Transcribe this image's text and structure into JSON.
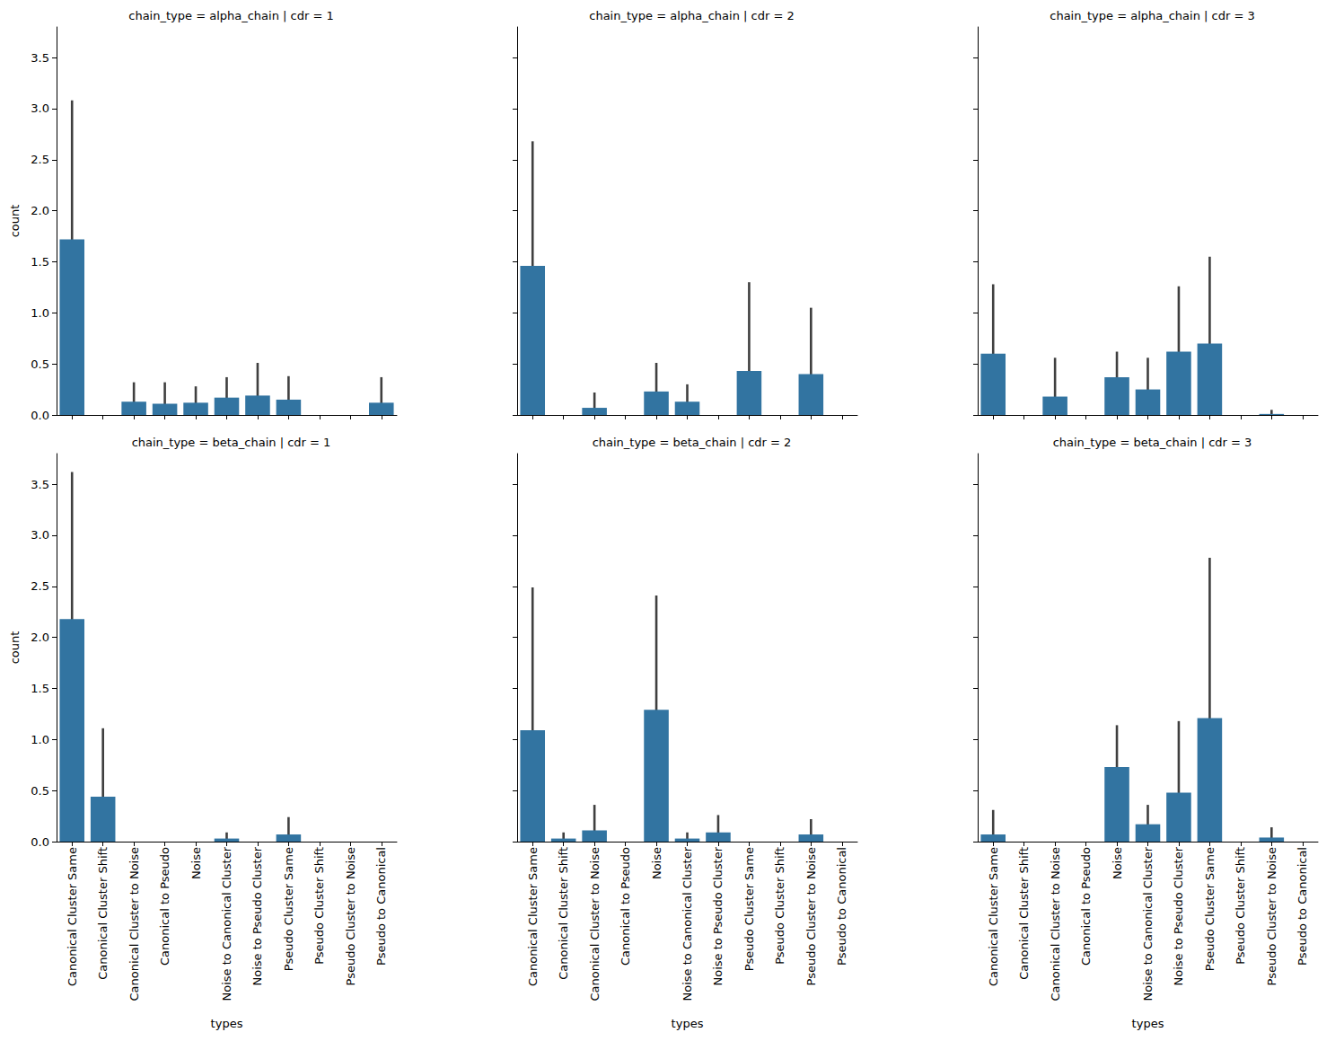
{
  "chart_data": [
    {
      "type": "bar",
      "title": "chain_type = alpha_chain | cdr = 1",
      "ylabel": "count",
      "tick_labels": "y",
      "categories": [
        "Canonical Cluster Same",
        "Canonical Cluster Shift",
        "Canonical Cluster to Noise",
        "Canonical to Pseudo",
        "Noise",
        "Noise to Canonical Cluster",
        "Noise to Pseudo Cluster",
        "Pseudo Cluster Same",
        "Pseudo Cluster Shift",
        "Pseudo Cluster to Noise",
        "Pseudo to Canonical"
      ],
      "values": [
        1.72,
        null,
        0.13,
        0.11,
        0.12,
        0.17,
        0.19,
        0.15,
        null,
        null,
        0.12
      ],
      "error_low": [
        0.62,
        null,
        0.0,
        0.0,
        0.0,
        0.0,
        0.0,
        0.0,
        null,
        null,
        0.0
      ],
      "error_high": [
        3.08,
        null,
        0.32,
        0.32,
        0.28,
        0.37,
        0.51,
        0.38,
        null,
        null,
        0.37
      ],
      "color": "#3274a1",
      "ylim": [
        0,
        3.8
      ],
      "yticks": [
        {
          "value": 0,
          "label": "0.0"
        },
        {
          "value": 0.5,
          "label": "0.5"
        },
        {
          "value": 1,
          "label": "1.0"
        },
        {
          "value": 1.5,
          "label": "1.5"
        },
        {
          "value": 2,
          "label": "2.0"
        },
        {
          "value": 2.5,
          "label": "2.5"
        },
        {
          "value": 3,
          "label": "3.0"
        },
        {
          "value": 3.5,
          "label": "3.5"
        }
      ]
    },
    {
      "type": "bar",
      "title": "chain_type = alpha_chain | cdr = 2",
      "tick_labels": false,
      "categories": [
        "Canonical Cluster Same",
        "Canonical Cluster Shift",
        "Canonical Cluster to Noise",
        "Canonical to Pseudo",
        "Noise",
        "Noise to Canonical Cluster",
        "Noise to Pseudo Cluster",
        "Pseudo Cluster Same",
        "Pseudo Cluster Shift",
        "Pseudo Cluster to Noise",
        "Pseudo to Canonical"
      ],
      "values": [
        1.46,
        null,
        0.07,
        null,
        0.23,
        0.13,
        null,
        0.43,
        null,
        0.4,
        null
      ],
      "error_low": [
        0.53,
        null,
        0.0,
        null,
        0.0,
        0.0,
        null,
        0.0,
        null,
        0.0,
        null
      ],
      "error_high": [
        2.68,
        null,
        0.22,
        null,
        0.51,
        0.3,
        null,
        1.3,
        null,
        1.05,
        null
      ],
      "color": "#3274a1",
      "ylim": [
        0,
        3.8
      ],
      "yticks": [
        {
          "value": 0,
          "label": "0.0"
        },
        {
          "value": 0.5,
          "label": "0.5"
        },
        {
          "value": 1,
          "label": "1.0"
        },
        {
          "value": 1.5,
          "label": "1.5"
        },
        {
          "value": 2,
          "label": "2.0"
        },
        {
          "value": 2.5,
          "label": "2.5"
        },
        {
          "value": 3,
          "label": "3.0"
        },
        {
          "value": 3.5,
          "label": "3.5"
        }
      ]
    },
    {
      "type": "bar",
      "title": "chain_type = alpha_chain | cdr = 3",
      "tick_labels": false,
      "categories": [
        "Canonical Cluster Same",
        "Canonical Cluster Shift",
        "Canonical Cluster to Noise",
        "Canonical to Pseudo",
        "Noise",
        "Noise to Canonical Cluster",
        "Noise to Pseudo Cluster",
        "Pseudo Cluster Same",
        "Pseudo Cluster Shift",
        "Pseudo Cluster to Noise",
        "Pseudo to Canonical"
      ],
      "values": [
        0.6,
        null,
        0.18,
        null,
        0.37,
        0.25,
        0.62,
        0.7,
        null,
        0.01,
        null
      ],
      "error_low": [
        0.14,
        null,
        0.0,
        null,
        0.14,
        0.0,
        0.11,
        0.05,
        null,
        0.0,
        null
      ],
      "error_high": [
        1.28,
        null,
        0.56,
        null,
        0.62,
        0.56,
        1.26,
        1.55,
        null,
        0.05,
        null
      ],
      "color": "#3274a1",
      "ylim": [
        0,
        3.8
      ],
      "yticks": [
        {
          "value": 0,
          "label": "0.0"
        },
        {
          "value": 0.5,
          "label": "0.5"
        },
        {
          "value": 1,
          "label": "1.0"
        },
        {
          "value": 1.5,
          "label": "1.5"
        },
        {
          "value": 2,
          "label": "2.0"
        },
        {
          "value": 2.5,
          "label": "2.5"
        },
        {
          "value": 3,
          "label": "3.0"
        },
        {
          "value": 3.5,
          "label": "3.5"
        }
      ]
    },
    {
      "type": "bar",
      "title": "chain_type = beta_chain | cdr = 1",
      "xlabel": "types",
      "ylabel": "count",
      "tick_labels": true,
      "categories": [
        "Canonical Cluster Same",
        "Canonical Cluster Shift",
        "Canonical Cluster to Noise",
        "Canonical to Pseudo",
        "Noise",
        "Noise to Canonical Cluster",
        "Noise to Pseudo Cluster",
        "Pseudo Cluster Same",
        "Pseudo Cluster Shift",
        "Pseudo Cluster to Noise",
        "Pseudo to Canonical"
      ],
      "values": [
        2.18,
        0.44,
        null,
        null,
        null,
        0.03,
        null,
        0.07,
        null,
        null,
        null
      ],
      "error_low": [
        1.06,
        0.0,
        null,
        null,
        null,
        0.0,
        null,
        0.0,
        null,
        null,
        null
      ],
      "error_high": [
        3.62,
        1.11,
        null,
        null,
        null,
        0.09,
        null,
        0.24,
        null,
        null,
        null
      ],
      "color": "#3274a1",
      "ylim": [
        0,
        3.8
      ],
      "yticks": [
        {
          "value": 0,
          "label": "0.0"
        },
        {
          "value": 0.5,
          "label": "0.5"
        },
        {
          "value": 1,
          "label": "1.0"
        },
        {
          "value": 1.5,
          "label": "1.5"
        },
        {
          "value": 2,
          "label": "2.0"
        },
        {
          "value": 2.5,
          "label": "2.5"
        },
        {
          "value": 3,
          "label": "3.0"
        },
        {
          "value": 3.5,
          "label": "3.5"
        }
      ]
    },
    {
      "type": "bar",
      "title": "chain_type = beta_chain | cdr = 2",
      "xlabel": "types",
      "tick_labels": "x",
      "categories": [
        "Canonical Cluster Same",
        "Canonical Cluster Shift",
        "Canonical Cluster to Noise",
        "Canonical to Pseudo",
        "Noise",
        "Noise to Canonical Cluster",
        "Noise to Pseudo Cluster",
        "Pseudo Cluster Same",
        "Pseudo Cluster Shift",
        "Pseudo Cluster to Noise",
        "Pseudo to Canonical"
      ],
      "values": [
        1.09,
        0.03,
        0.11,
        null,
        1.29,
        0.03,
        0.09,
        null,
        null,
        0.07,
        null
      ],
      "error_low": [
        0.2,
        0.0,
        0.0,
        null,
        0.41,
        0.0,
        0.0,
        null,
        null,
        0.0,
        null
      ],
      "error_high": [
        2.49,
        0.09,
        0.36,
        null,
        2.41,
        0.09,
        0.26,
        null,
        null,
        0.22,
        null
      ],
      "color": "#3274a1",
      "ylim": [
        0,
        3.8
      ],
      "yticks": [
        {
          "value": 0,
          "label": "0.0"
        },
        {
          "value": 0.5,
          "label": "0.5"
        },
        {
          "value": 1,
          "label": "1.0"
        },
        {
          "value": 1.5,
          "label": "1.5"
        },
        {
          "value": 2,
          "label": "2.0"
        },
        {
          "value": 2.5,
          "label": "2.5"
        },
        {
          "value": 3,
          "label": "3.0"
        },
        {
          "value": 3.5,
          "label": "3.5"
        }
      ]
    },
    {
      "type": "bar",
      "title": "chain_type = beta_chain | cdr = 3",
      "xlabel": "types",
      "tick_labels": "x",
      "categories": [
        "Canonical Cluster Same",
        "Canonical Cluster Shift",
        "Canonical Cluster to Noise",
        "Canonical to Pseudo",
        "Noise",
        "Noise to Canonical Cluster",
        "Noise to Pseudo Cluster",
        "Pseudo Cluster Same",
        "Pseudo Cluster Shift",
        "Pseudo Cluster to Noise",
        "Pseudo to Canonical"
      ],
      "values": [
        0.07,
        null,
        null,
        null,
        0.73,
        0.17,
        0.48,
        1.21,
        null,
        0.04,
        null
      ],
      "error_low": [
        0.0,
        null,
        null,
        null,
        0.39,
        0.02,
        0.08,
        0.12,
        null,
        0.0,
        null
      ],
      "error_high": [
        0.31,
        null,
        null,
        null,
        1.14,
        0.36,
        1.18,
        2.78,
        null,
        0.14,
        null
      ],
      "color": "#3274a1",
      "ylim": [
        0,
        3.8
      ],
      "yticks": [
        {
          "value": 0,
          "label": "0.0"
        },
        {
          "value": 0.5,
          "label": "0.5"
        },
        {
          "value": 1,
          "label": "1.0"
        },
        {
          "value": 1.5,
          "label": "1.5"
        },
        {
          "value": 2,
          "label": "2.0"
        },
        {
          "value": 2.5,
          "label": "2.5"
        },
        {
          "value": 3,
          "label": "3.0"
        },
        {
          "value": 3.5,
          "label": "3.5"
        }
      ]
    }
  ]
}
